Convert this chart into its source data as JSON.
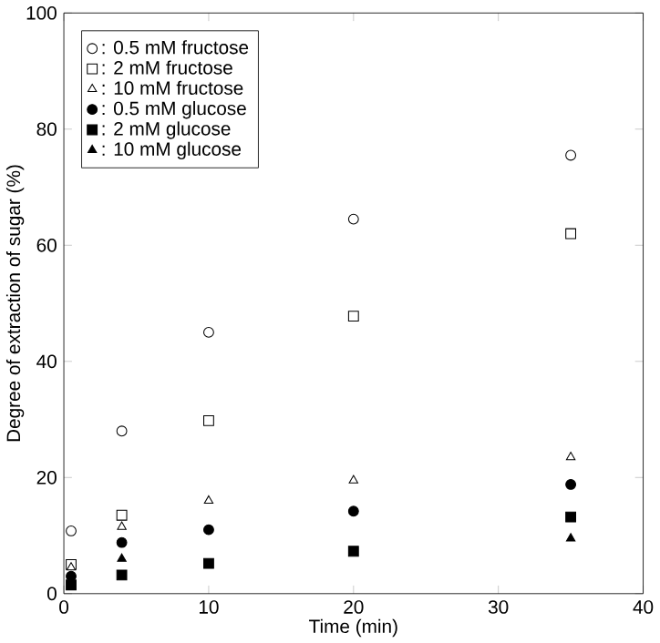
{
  "chart_data": {
    "type": "scatter",
    "xlabel": "Time (min)",
    "ylabel": "Degree of extraction of sugar (%)",
    "xlim": [
      0,
      40
    ],
    "xticks": [
      0,
      10,
      20,
      30,
      40
    ],
    "ylim": [
      0,
      100
    ],
    "yticks": [
      0,
      20,
      40,
      60,
      80,
      100
    ],
    "legend": "top left",
    "x": [
      0.5,
      4,
      10,
      20,
      35
    ],
    "series": [
      {
        "name": ": 0.5 mM fructose",
        "color": "#ffffff",
        "marker": "circle",
        "values": [
          10.8,
          28,
          45,
          64.5,
          75.5
        ]
      },
      {
        "name": ": 2 mM fructose",
        "color": "#ffffff",
        "marker": "square",
        "values": [
          5,
          13.5,
          29.8,
          47.8,
          62
        ]
      },
      {
        "name": ": 10 mM fructose",
        "color": "#ffffff",
        "marker": "triangle",
        "values": [
          4.5,
          11.5,
          16,
          19.5,
          23.5
        ]
      },
      {
        "name": ": 0.5 mM glucose",
        "color": "#000000",
        "marker": "circle",
        "values": [
          3,
          8.8,
          11,
          14.2,
          18.8
        ]
      },
      {
        "name": ": 2 mM glucose",
        "color": "#000000",
        "marker": "square",
        "values": [
          1.5,
          3.2,
          5.2,
          7.3,
          13.2
        ]
      },
      {
        "name": ": 10 mM glucose",
        "color": "#000000",
        "marker": "triangle",
        "values": [
          null,
          6,
          null,
          null,
          9.5
        ]
      }
    ]
  }
}
